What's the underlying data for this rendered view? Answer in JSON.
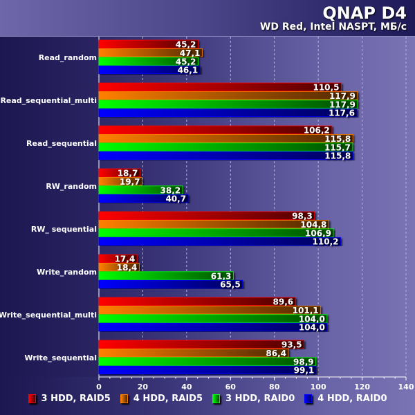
{
  "chart_data": {
    "type": "bar",
    "orientation": "horizontal",
    "title": "QNAP D4",
    "subtitle": "WD Red, Intel NASPT, МБ/с",
    "categories": [
      "Read_random",
      "Read_sequential_multi",
      "Read_sequential",
      "RW_random",
      "RW_ sequential",
      "Write_random",
      "Write_sequential_multi",
      "Write_sequential"
    ],
    "series": [
      {
        "name": "3 HDD, RAID5",
        "color": "#ff0000",
        "values": [
          45.2,
          110.5,
          106.2,
          18.7,
          98.3,
          17.4,
          89.6,
          93.5
        ]
      },
      {
        "name": "4 HDD, RAID5",
        "color": "#ff8000",
        "values": [
          47.1,
          117.9,
          115.8,
          19.7,
          104.8,
          18.4,
          101.1,
          86.4
        ]
      },
      {
        "name": "3 HDD, RAID0",
        "color": "#00ff00",
        "values": [
          45.2,
          117.9,
          115.7,
          38.2,
          106.9,
          61.3,
          104.0,
          98.9
        ]
      },
      {
        "name": "4 HDD, RAID0",
        "color": "#0000ff",
        "values": [
          46.1,
          117.6,
          115.8,
          40.7,
          110.2,
          65.5,
          104.0,
          99.1
        ]
      }
    ],
    "xlim": [
      0,
      140
    ],
    "xticks": [
      0,
      20,
      40,
      60,
      80,
      100,
      120,
      140
    ],
    "grid": true,
    "legend": "bottom",
    "decimal_separator": ","
  }
}
